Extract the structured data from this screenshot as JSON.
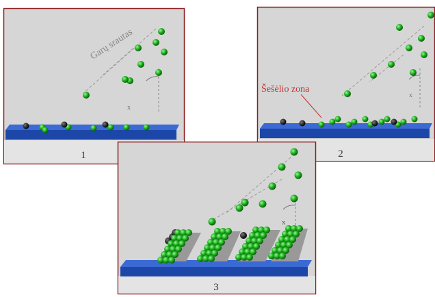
{
  "panels": [
    {
      "label": "1",
      "annotation": "Garų srautas",
      "angle": "x"
    },
    {
      "label": "2",
      "annotation": "Šešėlio zona",
      "angle": "x"
    },
    {
      "label": "3",
      "angle": "x"
    }
  ]
}
